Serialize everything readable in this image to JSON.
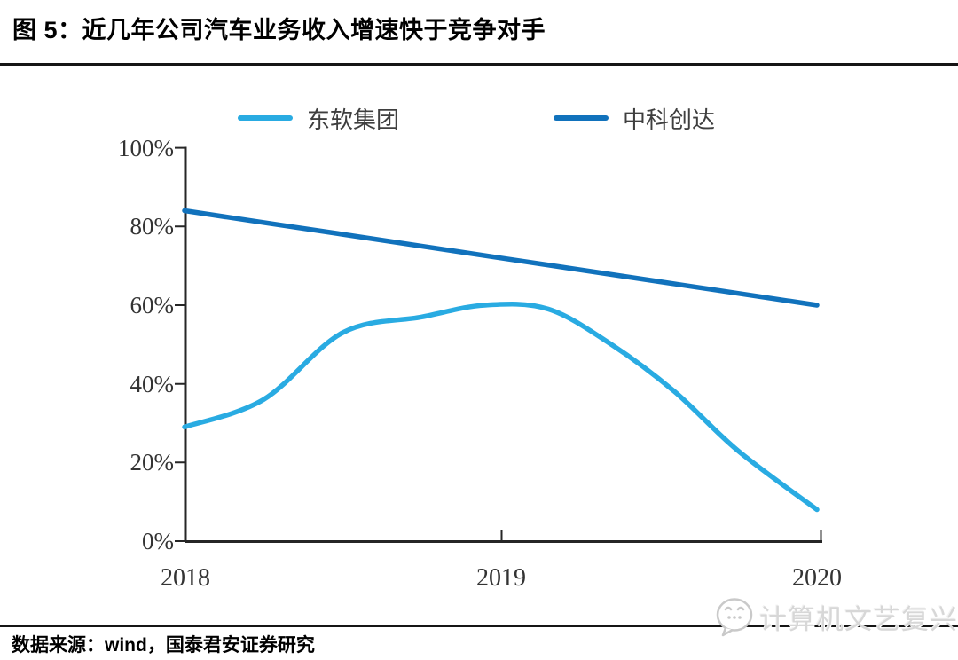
{
  "title": {
    "label": "图 5：近几年公司汽车业务收入增速快于竞争对手"
  },
  "chart_data": {
    "type": "line",
    "title": "近几年公司汽车业务收入增速快于竞争对手",
    "x": [
      2018,
      2019,
      2020
    ],
    "xtick_labels": [
      "2018",
      "2019",
      "2020"
    ],
    "ytick_labels": [
      "0%",
      "20%",
      "40%",
      "60%",
      "80%",
      "100%"
    ],
    "ylim": [
      0,
      100
    ],
    "grid": false,
    "legend_position": "top",
    "series": [
      {
        "name": "东软集团",
        "color": "#29ABE2",
        "values": [
          29,
          60,
          8
        ],
        "curve_points": [
          [
            2018,
            29
          ],
          [
            2018.25,
            36
          ],
          [
            2018.5,
            53
          ],
          [
            2018.75,
            57
          ],
          [
            2018.95,
            60
          ],
          [
            2019.15,
            59
          ],
          [
            2019.35,
            50
          ],
          [
            2019.55,
            38
          ],
          [
            2019.75,
            23
          ],
          [
            2020,
            8
          ]
        ]
      },
      {
        "name": "中科创达",
        "color": "#1172BC",
        "values": [
          84,
          72,
          60
        ],
        "curve_points": [
          [
            2018,
            84
          ],
          [
            2018.5,
            78
          ],
          [
            2019,
            72
          ],
          [
            2019.5,
            66
          ],
          [
            2020,
            60
          ]
        ]
      }
    ]
  },
  "footer": {
    "source": "数据来源：wind，国泰君安证券研究"
  },
  "watermark": {
    "label": "计算机文艺复兴",
    "icon": "wechat-bubble-face-icon"
  }
}
